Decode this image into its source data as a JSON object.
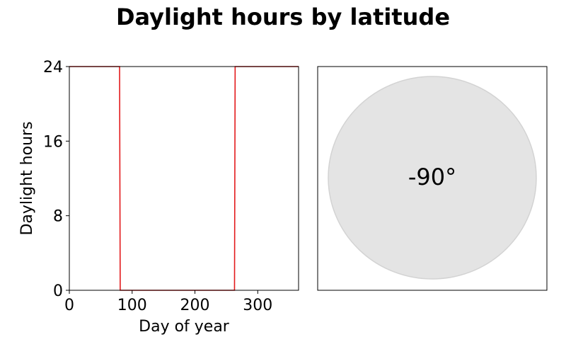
{
  "chart_data": {
    "title": "Daylight hours by latitude",
    "panels": [
      {
        "type": "line",
        "xlabel": "Day of year",
        "ylabel": "Daylight hours",
        "xlim": [
          0,
          365
        ],
        "ylim": [
          0,
          24
        ],
        "xticks": [
          0,
          100,
          200,
          300
        ],
        "yticks": [
          0,
          8,
          16,
          24
        ],
        "grid": false,
        "series": [
          {
            "color": "#e31a1c",
            "x": [
              0,
              80,
              81,
              263,
              264,
              365
            ],
            "y": [
              24,
              24,
              0,
              0,
              24,
              24
            ]
          }
        ]
      },
      {
        "type": "indicator",
        "label": "-90°",
        "fill_color": "#e4e4e4",
        "edge_color": "#d3d3d3"
      }
    ]
  }
}
